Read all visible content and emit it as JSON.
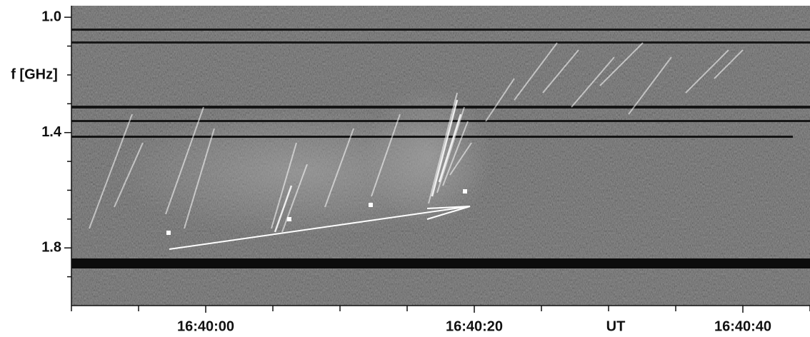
{
  "chart_data": {
    "type": "spectrogram",
    "ylabel": "f [GHz]",
    "xlabel": "UT",
    "ylim": [
      0.96,
      2.0
    ],
    "y_inverted": true,
    "yticks": [
      {
        "value": 1,
        "label": "1.0"
      },
      1.4,
      1.8
    ],
    "yminor_ticks": [
      1.1,
      1.2,
      1.3,
      1.5,
      1.6,
      1.7,
      1.9
    ],
    "xlim": [
      59990,
      60045
    ],
    "xticks": [
      {
        "value": 60000,
        "label": "16:40:00"
      },
      {
        "value": 60020,
        "label": "16:40:20"
      },
      {
        "value": 60040,
        "label": "16:40:40"
      }
    ],
    "xminor_ticks": [
      59990,
      59995,
      60005,
      60010,
      60015,
      60025,
      60030,
      60035,
      60045
    ]
  }
}
